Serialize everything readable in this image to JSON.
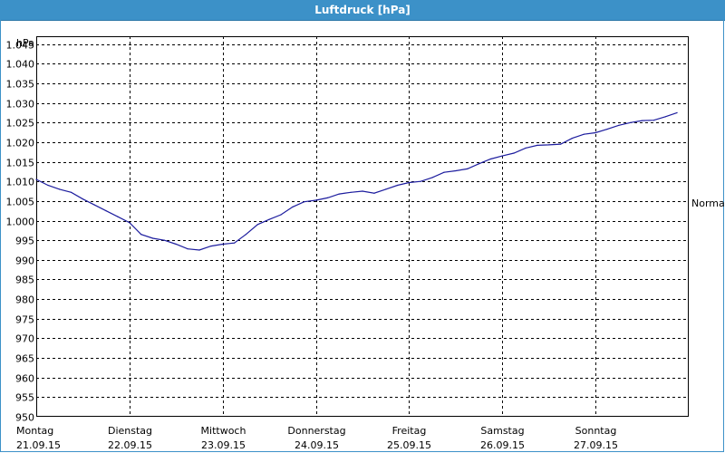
{
  "window": {
    "title": "Luftdruck [hPa]"
  },
  "colors": {
    "title_bar": "#3c91c8",
    "line": "#1c1c9e",
    "grid": "#000000"
  },
  "chart_data": {
    "type": "line",
    "title": "Luftdruck [hPa]",
    "ylabel": "hPa",
    "ylim": [
      950,
      1047
    ],
    "y_ticks": [
      {
        "value": 950,
        "label": "950"
      },
      {
        "value": 955,
        "label": "955"
      },
      {
        "value": 960,
        "label": "960"
      },
      {
        "value": 965,
        "label": "965"
      },
      {
        "value": 970,
        "label": "970"
      },
      {
        "value": 975,
        "label": "975"
      },
      {
        "value": 980,
        "label": "980"
      },
      {
        "value": 985,
        "label": "985"
      },
      {
        "value": 990,
        "label": "990"
      },
      {
        "value": 995,
        "label": "995"
      },
      {
        "value": 1000,
        "label": "1.000"
      },
      {
        "value": 1005,
        "label": "1.005"
      },
      {
        "value": 1010,
        "label": "1.010"
      },
      {
        "value": 1015,
        "label": "1.015"
      },
      {
        "value": 1020,
        "label": "1.020"
      },
      {
        "value": 1025,
        "label": "1.025"
      },
      {
        "value": 1030,
        "label": "1.030"
      },
      {
        "value": 1035,
        "label": "1.035"
      },
      {
        "value": 1040,
        "label": "1.040"
      },
      {
        "value": 1045,
        "label": "1.045"
      }
    ],
    "xlim": [
      "2015-09-21T00:00",
      "2015-09-28T00:00"
    ],
    "x_ticks": [
      {
        "day": "Montag",
        "date": "21.09.15"
      },
      {
        "day": "Dienstag",
        "date": "22.09.15"
      },
      {
        "day": "Mittwoch",
        "date": "23.09.15"
      },
      {
        "day": "Donnerstag",
        "date": "24.09.15"
      },
      {
        "day": "Freitag",
        "date": "25.09.15"
      },
      {
        "day": "Samstag",
        "date": "26.09.15"
      },
      {
        "day": "Sonntag",
        "date": "27.09.15"
      }
    ],
    "grid": true,
    "reference_line": {
      "label": "Normal",
      "value": 1004.5
    },
    "series": [
      {
        "x": [
          "2015-09-21T00:00",
          "2015-09-21T03:00",
          "2015-09-21T06:00",
          "2015-09-21T09:00",
          "2015-09-21T12:00",
          "2015-09-21T15:00",
          "2015-09-21T18:00",
          "2015-09-21T21:00",
          "2015-09-22T00:00",
          "2015-09-22T03:00",
          "2015-09-22T06:00",
          "2015-09-22T09:00",
          "2015-09-22T12:00",
          "2015-09-22T15:00",
          "2015-09-22T18:00",
          "2015-09-22T21:00",
          "2015-09-23T00:00",
          "2015-09-23T03:00",
          "2015-09-23T06:00",
          "2015-09-23T09:00",
          "2015-09-23T12:00",
          "2015-09-23T15:00",
          "2015-09-23T18:00",
          "2015-09-23T21:00",
          "2015-09-24T00:00",
          "2015-09-24T03:00",
          "2015-09-24T06:00",
          "2015-09-24T09:00",
          "2015-09-24T12:00",
          "2015-09-24T15:00",
          "2015-09-24T18:00",
          "2015-09-24T21:00",
          "2015-09-25T00:00",
          "2015-09-25T03:00",
          "2015-09-25T06:00",
          "2015-09-25T09:00",
          "2015-09-25T12:00",
          "2015-09-25T15:00",
          "2015-09-25T18:00",
          "2015-09-25T21:00",
          "2015-09-26T00:00",
          "2015-09-26T03:00",
          "2015-09-26T06:00",
          "2015-09-26T09:00",
          "2015-09-26T12:00",
          "2015-09-26T15:00",
          "2015-09-26T18:00",
          "2015-09-26T21:00",
          "2015-09-27T00:00",
          "2015-09-27T03:00",
          "2015-09-27T06:00",
          "2015-09-27T09:00",
          "2015-09-27T12:00",
          "2015-09-27T15:00",
          "2015-09-27T18:00",
          "2015-09-27T21:00"
        ],
        "values": [
          1010.5,
          1009.0,
          1008.0,
          1007.2,
          1005.5,
          1004.0,
          1002.5,
          1001.0,
          999.5,
          996.5,
          995.5,
          995.0,
          994.0,
          992.8,
          992.5,
          993.5,
          994.0,
          994.3,
          996.5,
          999.0,
          1000.3,
          1001.5,
          1003.5,
          1004.8,
          1005.2,
          1005.8,
          1006.8,
          1007.2,
          1007.5,
          1007.0,
          1008.0,
          1009.0,
          1009.7,
          1010.0,
          1011.0,
          1012.3,
          1012.7,
          1013.2,
          1014.5,
          1015.7,
          1016.5,
          1017.2,
          1018.5,
          1019.2,
          1019.3,
          1019.5,
          1021.0,
          1022.0,
          1022.4,
          1023.3,
          1024.3,
          1025.0,
          1025.5,
          1025.6,
          1026.5,
          1027.5
        ]
      }
    ]
  }
}
